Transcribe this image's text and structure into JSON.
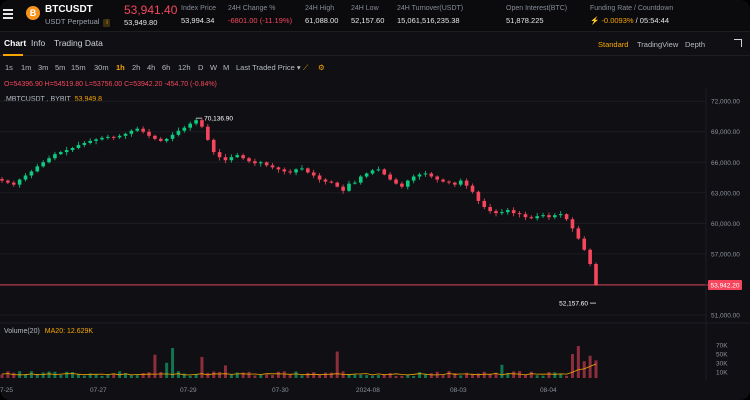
{
  "header": {
    "coin_letter": "B",
    "symbol": "BTCUSDT",
    "subtitle": "USDT Perpetual",
    "info_mark": "i",
    "last_price": "53,941.40",
    "mark_price": "53,949.80",
    "stats": [
      {
        "label": "Index Price",
        "value": "53,994.34",
        "tone": "normal"
      },
      {
        "label": "24H Change %",
        "value": "-6801.00 (-11.19%)",
        "tone": "neg"
      },
      {
        "label": "24H High",
        "value": "61,088.00",
        "tone": "normal"
      },
      {
        "label": "24H Low",
        "value": "52,157.60",
        "tone": "normal"
      },
      {
        "label": "24H Turnover(USDT)",
        "value": "15,061,516,235.38",
        "tone": "normal"
      },
      {
        "label": "Open Interest(BTC)",
        "value": "51,878.225",
        "tone": "normal"
      }
    ],
    "funding": {
      "label": "Funding Rate / Countdown",
      "rate": "-0.0093%",
      "countdown": " / 05:54:44"
    }
  },
  "tabs": [
    "Chart",
    "Info",
    "Trading Data"
  ],
  "views": [
    "Standard",
    "TradingView",
    "Depth"
  ],
  "intervals": [
    "1s",
    "1m",
    "3m",
    "5m",
    "15m",
    "30m",
    "1h",
    "2h",
    "4h",
    "6h",
    "12h",
    "D",
    "W",
    "M"
  ],
  "active_interval": "1h",
  "price_type": "Last Traded Price",
  "ohlc": "O=54396.90 H=54519.80 L=53756.00 C=53942.20 -454.70 (-0.84%)",
  "chart_symbol": ".MBTCUSDT , BYBIT",
  "chart_symbol_price": "53,949.8",
  "volume_label": "Volume(20)",
  "volume_ma": "MA20: 12.629K",
  "colors": {
    "up": "#0ecb81",
    "down": "#f6465d",
    "accent": "#f7a600",
    "background": "#101014"
  },
  "chart_data": {
    "type": "candlestick",
    "x_labels": [
      "7-25",
      "07-27",
      "07-29",
      "07-30",
      "2024-08",
      "08-03",
      "08-04"
    ],
    "y_ticks": [
      72000,
      69000,
      66000,
      63000,
      60000,
      57000,
      54000,
      51000
    ],
    "y_range": [
      50300,
      73300
    ],
    "current_price_label": "53,942.20",
    "max_annotation": {
      "value": "70,136.90"
    },
    "min_annotation": {
      "value": "52,157.60"
    },
    "close_series": [
      64200,
      64000,
      63800,
      64300,
      64700,
      65100,
      65600,
      66000,
      66400,
      66800,
      67000,
      67200,
      67400,
      67700,
      67900,
      68100,
      68250,
      68400,
      68500,
      68450,
      68600,
      68800,
      69100,
      69300,
      69000,
      68600,
      68300,
      68100,
      68300,
      68700,
      69100,
      69400,
      69800,
      70137,
      69500,
      68200,
      67000,
      66500,
      66200,
      66500,
      66700,
      66400,
      66100,
      65900,
      66000,
      65700,
      65500,
      65300,
      65100,
      65000,
      65300,
      65400,
      65000,
      64700,
      64300,
      64100,
      64000,
      63600,
      63200,
      63900,
      64000,
      64600,
      64900,
      65200,
      65300,
      64800,
      64300,
      63900,
      63600,
      64200,
      64600,
      64800,
      64900,
      64600,
      64300,
      64100,
      64000,
      63800,
      64200,
      63700,
      63100,
      62200,
      61600,
      61200,
      61000,
      61100,
      61300,
      61000,
      60900,
      60600,
      60500,
      60700,
      60800,
      60600,
      60800,
      60900,
      60400,
      59500,
      58500,
      57400,
      56000,
      53942
    ],
    "volume_y_ticks": [
      "70K",
      "50K",
      "30K",
      "10K"
    ]
  }
}
